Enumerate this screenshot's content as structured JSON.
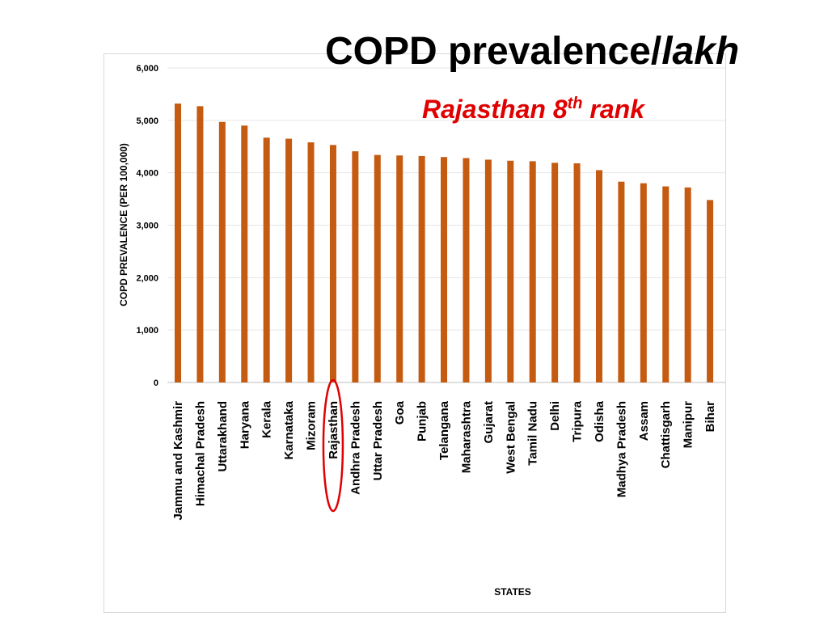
{
  "slide": {
    "title_main": "COPD prevalence/",
    "title_italic": "lakh",
    "subtitle_pre": "Rajasthan 8",
    "subtitle_sup": "th",
    "subtitle_post": " rank"
  },
  "chart_data": {
    "type": "bar",
    "ylabel": "COPD PREVALENCE  (PER 100,000)",
    "xlabel": "STATES",
    "ylim": [
      0,
      6000
    ],
    "yticks": [
      "0",
      "1,000",
      "2,000",
      "3,000",
      "4,000",
      "5,000",
      "6,000"
    ],
    "grid": true,
    "bar_color": "#c55a11",
    "highlight_color": "#e00000",
    "highlight_category": "Rajasthan",
    "categories": [
      "Jammu and Kashmir",
      "Himachal Pradesh",
      "Uttarakhand",
      "Haryana",
      "Kerala",
      "Karnataka",
      "Mizoram",
      "Rajasthan",
      "Andhra Pradesh",
      "Uttar Pradesh",
      "Goa",
      "Punjab",
      "Telangana",
      "Maharashtra",
      "Gujarat",
      "West Bengal",
      "Tamil Nadu",
      "Delhi",
      "Tripura",
      "Odisha",
      "Madhya Pradesh",
      "Assam",
      "Chattisgarh",
      "Manipur",
      "Bihar"
    ],
    "values": [
      5320,
      5270,
      4970,
      4900,
      4670,
      4650,
      4580,
      4530,
      4410,
      4340,
      4330,
      4320,
      4300,
      4280,
      4250,
      4230,
      4220,
      4190,
      4180,
      4050,
      3830,
      3800,
      3740,
      3720,
      3480
    ]
  }
}
